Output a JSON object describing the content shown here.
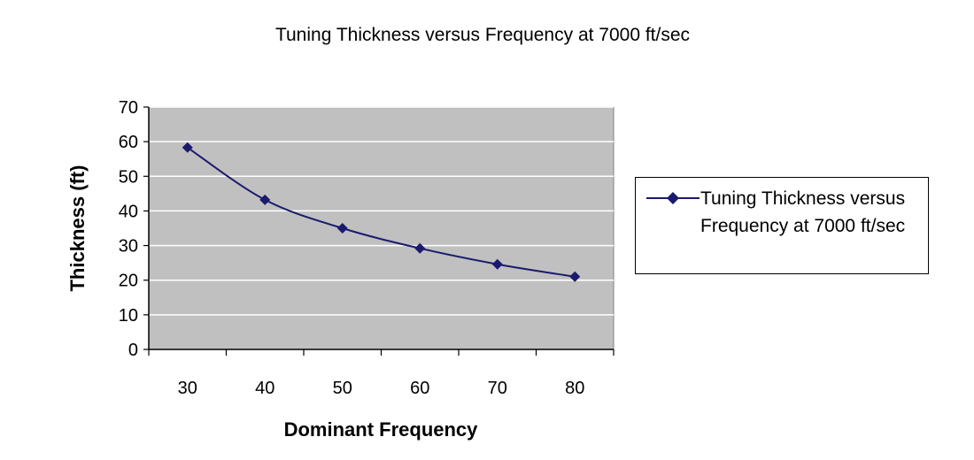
{
  "chart_data": {
    "type": "line",
    "title": "Tuning Thickness versus Frequency at 7000 ft/sec",
    "xlabel": "Dominant Frequency",
    "ylabel": "Thickness (ft)",
    "categories": [
      "30",
      "40",
      "50",
      "60",
      "70",
      "80"
    ],
    "series": [
      {
        "name": "Tuning Thickness versus Frequency at 7000 ft/sec",
        "values": [
          58.3,
          43.2,
          35.0,
          29.2,
          24.6,
          21.0
        ],
        "color": "#1a1a6e"
      }
    ],
    "ylim": [
      0,
      70
    ],
    "yticks": [
      "0",
      "10",
      "20",
      "30",
      "40",
      "50",
      "60",
      "70"
    ],
    "grid": true,
    "plot_background": "#c0c0c0",
    "legend_position": "right",
    "marker": "diamond"
  }
}
